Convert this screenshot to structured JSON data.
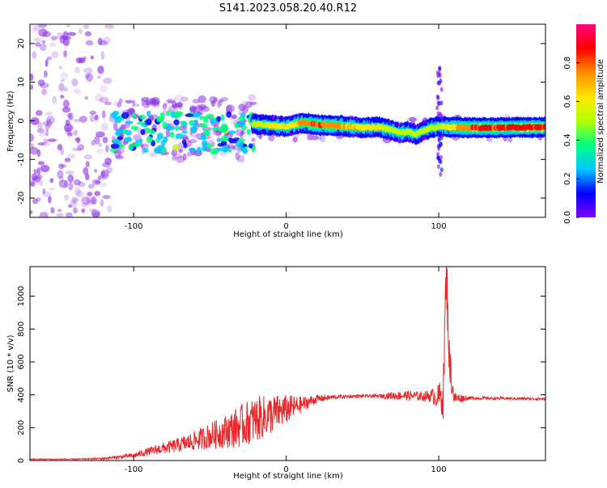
{
  "title": "S141.2023.058.20.40.R12",
  "colors": {
    "snr_line": "#e8292c",
    "noise": "#8a2be2",
    "colorbar_stops": [
      "#8000ff",
      "#0000ff",
      "#00c8ff",
      "#00ff80",
      "#b4ff00",
      "#ffe600",
      "#ff8c00",
      "#ff0000",
      "#ff0080"
    ]
  },
  "chart_data": [
    {
      "type": "heatmap",
      "xlabel": "Height of straight line (km)",
      "ylabel": "Frequency (Hz)",
      "xlim": [
        -168,
        170
      ],
      "ylim": [
        -25,
        25
      ],
      "xticks": [
        -100,
        0,
        100
      ],
      "xtick_labels": [
        "-100",
        "0",
        "100"
      ],
      "yticks": [
        -20,
        -10,
        0,
        10,
        20
      ],
      "ytick_labels": [
        "-20",
        "-10",
        "0",
        "10",
        "20"
      ],
      "colorbar": {
        "label": "Normalized spectral amplitude",
        "range": [
          0,
          1
        ],
        "ticks": [
          0.0,
          0.2,
          0.4,
          0.6,
          0.8
        ],
        "tick_labels": [
          "0.0",
          "0.2",
          "0.4",
          "0.6",
          "0.8"
        ]
      },
      "carrier_track": {
        "x": [
          -22,
          -10,
          0,
          10,
          20,
          30,
          40,
          50,
          60,
          70,
          75,
          80,
          85,
          90,
          95,
          100,
          105,
          120,
          140,
          160,
          170
        ],
        "y": [
          -0.8,
          -1.2,
          -1.5,
          -0.5,
          -1.0,
          -1.2,
          -1.4,
          -1.8,
          -1.6,
          -2.5,
          -3.2,
          -2.8,
          -3.5,
          -2.6,
          -1.8,
          -1.5,
          -1.6,
          -1.8,
          -1.8,
          -1.7,
          -1.7
        ],
        "amplitude": [
          0.5,
          0.6,
          0.6,
          0.7,
          0.8,
          0.75,
          0.7,
          0.65,
          0.6,
          0.55,
          0.5,
          0.5,
          0.5,
          0.55,
          0.55,
          0.5,
          0.6,
          0.8,
          0.85,
          0.85,
          0.85
        ]
      }
    },
    {
      "type": "line",
      "xlabel": "Height of straight line (km)",
      "ylabel": "SNR (10 * v/v)",
      "xlim": [
        -168,
        170
      ],
      "ylim": [
        0,
        1180
      ],
      "xticks": [
        -100,
        0,
        100
      ],
      "xtick_labels": [
        "-100",
        "0",
        "100"
      ],
      "yticks": [
        0,
        200,
        400,
        600,
        800,
        1000
      ],
      "ytick_labels": [
        "0",
        "200",
        "400",
        "600",
        "800",
        "1000"
      ],
      "series": [
        {
          "x": [
            -168,
            -140,
            -120,
            -100,
            -90,
            -80,
            -70,
            -60,
            -50,
            -40,
            -30,
            -20,
            -10,
            0,
            10,
            20,
            30,
            40,
            50,
            60,
            70,
            80,
            90,
            95,
            100,
            103,
            105,
            107,
            110,
            120,
            140,
            160,
            170
          ],
          "y": [
            8,
            8,
            12,
            30,
            55,
            75,
            95,
            120,
            150,
            175,
            210,
            250,
            280,
            310,
            340,
            375,
            385,
            390,
            392,
            392,
            395,
            395,
            390,
            395,
            385,
            400,
            1180,
            600,
            380,
            380,
            378,
            376,
            375
          ],
          "noise_amplitude": [
            3,
            3,
            6,
            15,
            25,
            35,
            45,
            60,
            80,
            100,
            130,
            140,
            120,
            90,
            50,
            25,
            15,
            10,
            10,
            10,
            25,
            30,
            30,
            40,
            80,
            150,
            200,
            150,
            40,
            10,
            8,
            8,
            8
          ]
        }
      ]
    }
  ]
}
